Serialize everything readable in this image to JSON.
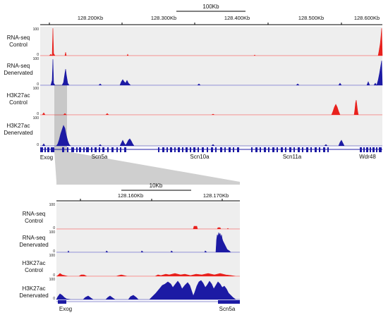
{
  "top_panel": {
    "scale_bar": "100Kb",
    "coordinates": [
      "128.200Kb",
      "128.300Kb",
      "128.400Kb",
      "128.500Kb",
      "128.600Kb"
    ],
    "tracks": [
      {
        "label_line1": "RNA-seq",
        "label_line2": "Control",
        "ymax": "100",
        "ymin": "0",
        "color": "#e8211d"
      },
      {
        "label_line1": "RNA-seq",
        "label_line2": "Denervated",
        "ymax": "100",
        "ymin": "0",
        "color": "#1c1aa4"
      },
      {
        "label_line1": "H3K27ac",
        "label_line2": "Control",
        "ymax": "100",
        "ymin": "0",
        "color": "#e8211d"
      },
      {
        "label_line1": "H3K27ac",
        "label_line2": "Denervated",
        "ymax": "100",
        "ymin": "0",
        "color": "#1c1aa4"
      }
    ],
    "genes": [
      "Exog",
      "Scn5a",
      "Scn10a",
      "Scn11a",
      "Wdr48"
    ]
  },
  "bottom_panel": {
    "scale_bar": "10Kb",
    "coordinates": [
      "128.160Kb",
      "128.170Kb"
    ],
    "tracks": [
      {
        "label_line1": "RNA-seq",
        "label_line2": "Control",
        "ymax": "100",
        "ymin": "0",
        "color": "#e8211d"
      },
      {
        "label_line1": "RNA-seq",
        "label_line2": "Denervated",
        "ymax": "100",
        "ymin": "0",
        "color": "#1c1aa4"
      },
      {
        "label_line1": "H3K27ac",
        "label_line2": "Control",
        "ymax": "100",
        "ymin": "0",
        "color": "#e8211d"
      },
      {
        "label_line1": "H3K27ac",
        "label_line2": "Denervated",
        "ymax": "100",
        "ymin": "0",
        "color": "#1c1aa4"
      }
    ],
    "genes": [
      "Exog",
      "Scn5a"
    ]
  },
  "colors": {
    "track_bg": "#eeeeee",
    "zoom_region": "#c8c8c8",
    "gene_model": "#1c1aa4"
  }
}
